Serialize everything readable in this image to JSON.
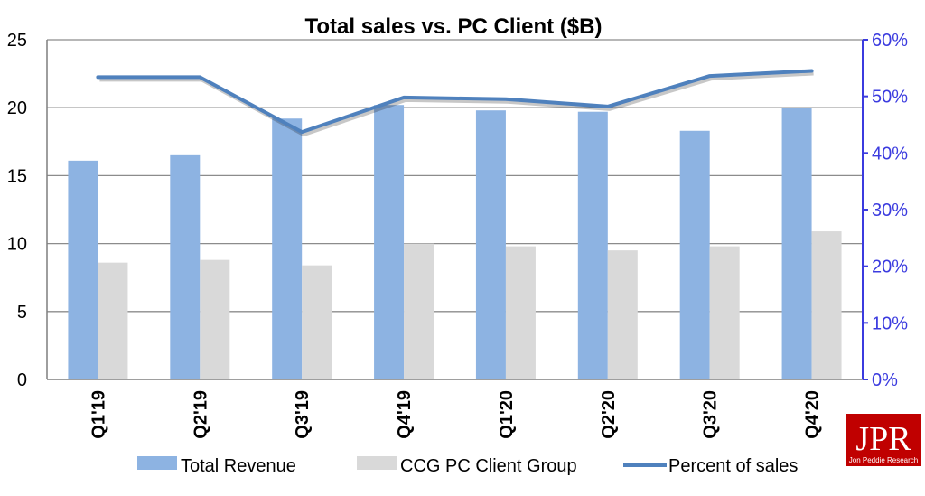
{
  "chart_data": {
    "type": "bar",
    "title": "Total sales vs. PC Client ($B)",
    "categories": [
      "Q1'19",
      "Q2'19",
      "Q3'19",
      "Q4'19",
      "Q1'20",
      "Q2'20",
      "Q3'20",
      "Q4'20"
    ],
    "series": [
      {
        "name": "Total Revenue",
        "type": "bar",
        "axis": "left",
        "color": "#8db3e2",
        "values": [
          16.1,
          16.5,
          19.2,
          20.2,
          19.8,
          19.7,
          18.3,
          20.0
        ]
      },
      {
        "name": "CCG PC Client Group",
        "type": "bar",
        "axis": "left",
        "color": "#d9d9d9",
        "values": [
          8.6,
          8.8,
          8.4,
          10.0,
          9.8,
          9.5,
          9.8,
          10.9
        ]
      },
      {
        "name": "Percent of sales",
        "type": "line",
        "axis": "right",
        "color": "#4f81bd",
        "values": [
          53.4,
          53.4,
          43.7,
          49.8,
          49.5,
          48.2,
          53.6,
          54.5
        ]
      }
    ],
    "y_left": {
      "min": 0,
      "max": 25,
      "step": 5,
      "ticks": [
        "0",
        "5",
        "10",
        "15",
        "20",
        "25"
      ]
    },
    "y_right": {
      "min": 0,
      "max": 60,
      "step": 10,
      "ticks": [
        "0%",
        "10%",
        "20%",
        "30%",
        "40%",
        "50%",
        "60%"
      ],
      "color": "#3b3bdf"
    },
    "grid": true,
    "legend": "bottom"
  },
  "logo": {
    "text": "JPR",
    "subtext": "Jon Peddie Research",
    "color": "#c00000"
  }
}
